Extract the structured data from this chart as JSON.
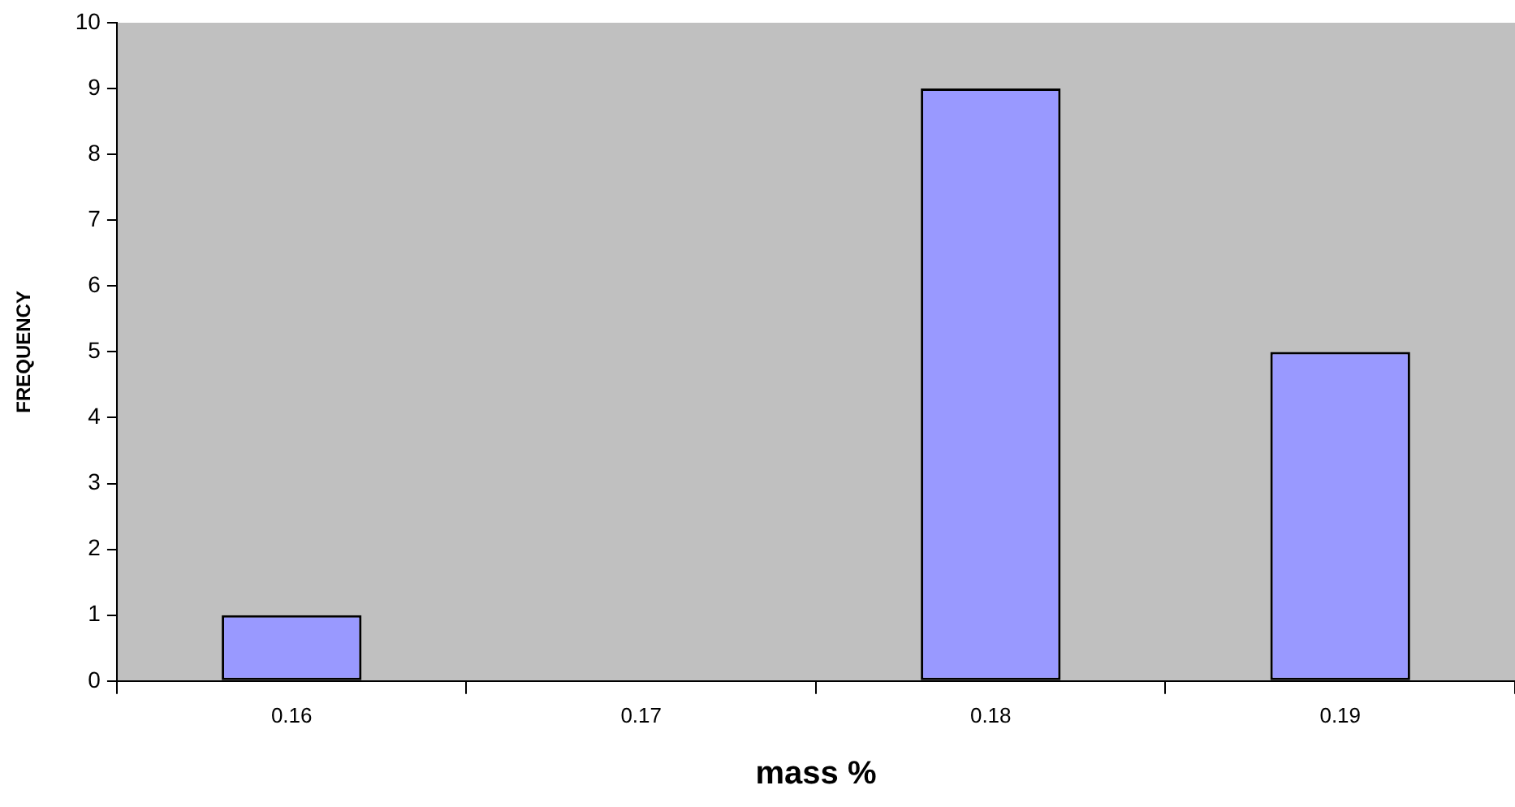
{
  "chart_data": {
    "type": "bar",
    "xlabel": "mass %",
    "ylabel": "FREQUENCY",
    "categories": [
      "0.16",
      "0.17",
      "0.18",
      "0.19"
    ],
    "values": [
      1,
      0,
      9,
      5
    ],
    "color": "#9999ff",
    "ylim": [
      0,
      10
    ],
    "yticks": [
      0,
      1,
      2,
      3,
      4,
      5,
      6,
      7,
      8,
      9,
      10
    ],
    "grid": false,
    "legend": false
  }
}
